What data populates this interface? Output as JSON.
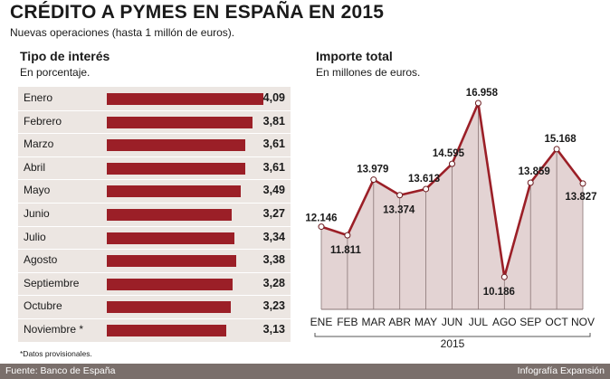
{
  "header": {
    "title": "CRÉDITO A PYMES EN ESPAÑA EN 2015",
    "subtitle": "Nuevas operaciones (hasta 1 millón de euros)."
  },
  "left_panel": {
    "title": "Tipo de interés",
    "subtitle": "En porcentaje."
  },
  "right_panel": {
    "title": "Importe total",
    "subtitle": "En millones de euros."
  },
  "footnote": "*Datos provisionales.",
  "footer": {
    "source": "Fuente:  Banco de España",
    "credit": "Infografía Expansión"
  },
  "colors": {
    "bar": "#9b1f27",
    "line": "#9b1f27",
    "area": "#e3d3d3",
    "panel_bg": "#ece6e2",
    "footer_bg": "#7a6f6b"
  },
  "chart_data": [
    {
      "type": "bar",
      "orientation": "horizontal",
      "categories": [
        "Enero",
        "Febrero",
        "Marzo",
        "Abril",
        "Mayo",
        "Junio",
        "Julio",
        "Agosto",
        "Septiembre",
        "Octubre",
        "Noviembre *"
      ],
      "values": [
        4.09,
        3.81,
        3.61,
        3.61,
        3.49,
        3.27,
        3.34,
        3.38,
        3.28,
        3.23,
        3.13
      ],
      "value_labels": [
        "4,09",
        "3,81",
        "3,61",
        "3,61",
        "3,49",
        "3,27",
        "3,34",
        "3,38",
        "3,28",
        "3,23",
        "3,13"
      ],
      "xlim": [
        0,
        4.09
      ],
      "grid": false
    },
    {
      "type": "area",
      "categories": [
        "ENE",
        "FEB",
        "MAR",
        "ABR",
        "MAY",
        "JUN",
        "JUL",
        "AGO",
        "SEP",
        "OCT",
        "NOV"
      ],
      "values": [
        12146,
        11811,
        13979,
        13374,
        13613,
        14595,
        16958,
        10186,
        13859,
        15168,
        13827
      ],
      "value_labels": [
        "12.146",
        "11.811",
        "13.979",
        "13.374",
        "13.613",
        "14.595",
        "16.958",
        "10.186",
        "13.859",
        "15.168",
        "13.827"
      ],
      "xlabel": "2015",
      "ylim": [
        9700,
        17100
      ],
      "grid": false
    }
  ]
}
